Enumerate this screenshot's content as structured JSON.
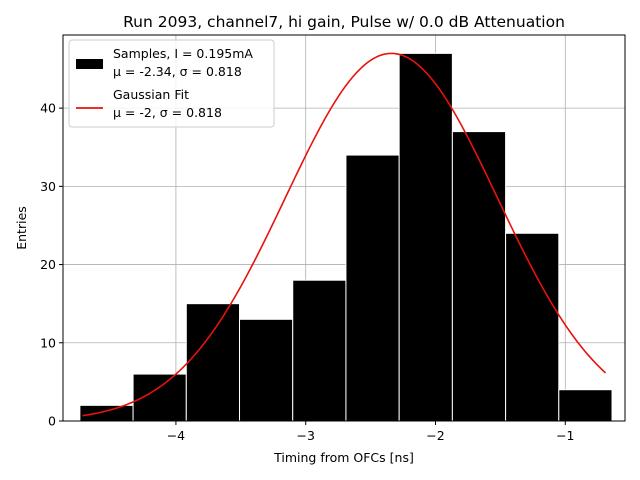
{
  "chart_data": {
    "type": "bar",
    "title": "Run 2093, channel7, hi gain, Pulse w/ 0.0 dB Attenuation",
    "xlabel": "Timing from OFCs [ns]",
    "ylabel": "Entries",
    "xlim": [
      -4.87,
      -0.54
    ],
    "ylim": [
      0,
      49.35
    ],
    "xticks": [
      -4,
      -3,
      -2,
      -1
    ],
    "xtick_labels": [
      "−4",
      "−3",
      "−2",
      "−1"
    ],
    "yticks": [
      0,
      10,
      20,
      30,
      40
    ],
    "ytick_labels": [
      "0",
      "10",
      "20",
      "30",
      "40"
    ],
    "grid": true,
    "legend_position": "top-left",
    "histogram": {
      "name": "Samples, I = 0.195mA",
      "stats": "μ = -2.34, σ = 0.818",
      "color": "#000000",
      "edge_color": "#ffffff",
      "bin_edges": [
        -4.74,
        -4.33,
        -3.92,
        -3.51,
        -3.1,
        -2.69,
        -2.28,
        -1.87,
        -1.46,
        -1.05,
        -0.64
      ],
      "counts": [
        2,
        6,
        15,
        13,
        18,
        34,
        47,
        37,
        24,
        4
      ]
    },
    "fit": {
      "name": "Gaussian Fit",
      "stats": "μ = -2, σ = 0.818",
      "color": "#e8120c",
      "mu": -2.34,
      "sigma": 0.818,
      "amplitude": 47,
      "x_range": [
        -4.72,
        -0.69
      ]
    }
  }
}
